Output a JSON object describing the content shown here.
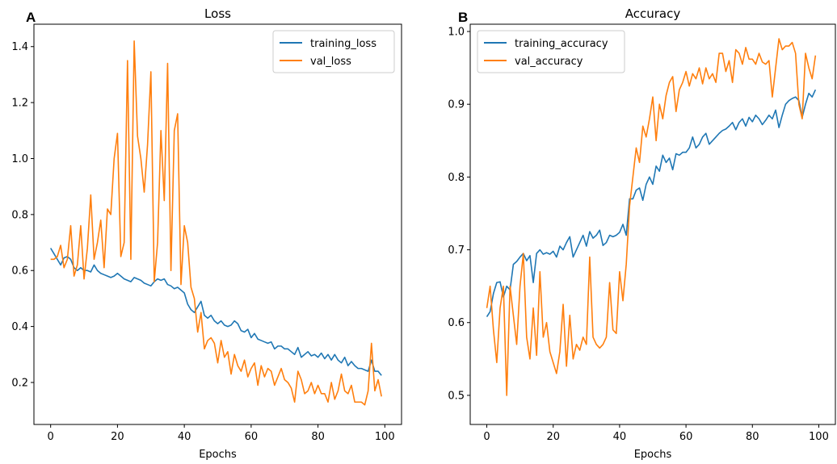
{
  "panels": {
    "a_label": "A",
    "b_label": "B"
  },
  "colors": {
    "training": "#1f77b4",
    "validation": "#ff7f0e",
    "axis": "#000000",
    "background": "#ffffff"
  },
  "chart_data": [
    {
      "type": "line",
      "title": "Loss",
      "xlabel": "Epochs",
      "ylabel": "",
      "xlim": [
        -5,
        105
      ],
      "ylim": [
        0.05,
        1.48
      ],
      "xticks": [
        0,
        20,
        40,
        60,
        80,
        100
      ],
      "yticks": [
        0.2,
        0.4,
        0.6,
        0.8,
        1.0,
        1.2,
        1.4
      ],
      "ytick_labels": [
        "0.2",
        "0.4",
        "0.6",
        "0.8",
        "1.0",
        "1.2",
        "1.4"
      ],
      "grid": false,
      "legend": "upper right",
      "x": [
        0,
        1,
        2,
        3,
        4,
        5,
        6,
        7,
        8,
        9,
        10,
        11,
        12,
        13,
        14,
        15,
        16,
        17,
        18,
        19,
        20,
        21,
        22,
        23,
        24,
        25,
        26,
        27,
        28,
        29,
        30,
        31,
        32,
        33,
        34,
        35,
        36,
        37,
        38,
        39,
        40,
        41,
        42,
        43,
        44,
        45,
        46,
        47,
        48,
        49,
        50,
        51,
        52,
        53,
        54,
        55,
        56,
        57,
        58,
        59,
        60,
        61,
        62,
        63,
        64,
        65,
        66,
        67,
        68,
        69,
        70,
        71,
        72,
        73,
        74,
        75,
        76,
        77,
        78,
        79,
        80,
        81,
        82,
        83,
        84,
        85,
        86,
        87,
        88,
        89,
        90,
        91,
        92,
        93,
        94,
        95,
        96,
        97,
        98,
        99
      ],
      "series": [
        {
          "name": "training_loss",
          "color": "#1f77b4",
          "values": [
            0.68,
            0.66,
            0.64,
            0.62,
            0.645,
            0.65,
            0.64,
            0.61,
            0.6,
            0.61,
            0.6,
            0.6,
            0.595,
            0.62,
            0.6,
            0.59,
            0.585,
            0.58,
            0.575,
            0.58,
            0.59,
            0.58,
            0.57,
            0.565,
            0.56,
            0.575,
            0.57,
            0.565,
            0.555,
            0.55,
            0.545,
            0.56,
            0.57,
            0.565,
            0.57,
            0.55,
            0.545,
            0.535,
            0.54,
            0.53,
            0.52,
            0.48,
            0.46,
            0.45,
            0.47,
            0.49,
            0.44,
            0.43,
            0.44,
            0.42,
            0.41,
            0.42,
            0.405,
            0.4,
            0.405,
            0.42,
            0.41,
            0.385,
            0.38,
            0.39,
            0.36,
            0.375,
            0.355,
            0.35,
            0.345,
            0.34,
            0.345,
            0.32,
            0.33,
            0.33,
            0.32,
            0.32,
            0.31,
            0.3,
            0.325,
            0.29,
            0.3,
            0.31,
            0.295,
            0.3,
            0.29,
            0.305,
            0.285,
            0.3,
            0.28,
            0.3,
            0.28,
            0.27,
            0.29,
            0.26,
            0.275,
            0.26,
            0.25,
            0.25,
            0.245,
            0.24,
            0.28,
            0.24,
            0.24,
            0.225
          ]
        },
        {
          "name": "val_loss",
          "color": "#ff7f0e",
          "values": [
            0.64,
            0.64,
            0.65,
            0.69,
            0.61,
            0.64,
            0.76,
            0.58,
            0.62,
            0.76,
            0.57,
            0.68,
            0.87,
            0.64,
            0.7,
            0.78,
            0.61,
            0.82,
            0.8,
            1.0,
            1.09,
            0.65,
            0.7,
            1.35,
            0.64,
            1.42,
            1.08,
            1.0,
            0.88,
            1.05,
            1.31,
            0.56,
            0.7,
            1.1,
            0.85,
            1.34,
            0.6,
            1.1,
            1.16,
            0.55,
            0.76,
            0.7,
            0.54,
            0.5,
            0.38,
            0.45,
            0.32,
            0.35,
            0.36,
            0.34,
            0.27,
            0.35,
            0.29,
            0.31,
            0.23,
            0.3,
            0.26,
            0.24,
            0.28,
            0.22,
            0.25,
            0.27,
            0.19,
            0.26,
            0.22,
            0.25,
            0.24,
            0.19,
            0.22,
            0.25,
            0.21,
            0.2,
            0.18,
            0.13,
            0.24,
            0.21,
            0.16,
            0.17,
            0.2,
            0.16,
            0.19,
            0.16,
            0.16,
            0.13,
            0.2,
            0.14,
            0.17,
            0.23,
            0.17,
            0.16,
            0.19,
            0.13,
            0.13,
            0.13,
            0.12,
            0.17,
            0.34,
            0.17,
            0.21,
            0.15
          ]
        }
      ]
    },
    {
      "type": "line",
      "title": "Accuracy",
      "xlabel": "Epochs",
      "ylabel": "",
      "xlim": [
        -5,
        105
      ],
      "ylim": [
        0.46,
        1.01
      ],
      "xticks": [
        0,
        20,
        40,
        60,
        80,
        100
      ],
      "yticks": [
        0.5,
        0.6,
        0.7,
        0.8,
        0.9,
        1.0
      ],
      "ytick_labels": [
        "0.5",
        "0.6",
        "0.7",
        "0.8",
        "0.9",
        "1.0"
      ],
      "grid": false,
      "legend": "upper left",
      "x": [
        0,
        1,
        2,
        3,
        4,
        5,
        6,
        7,
        8,
        9,
        10,
        11,
        12,
        13,
        14,
        15,
        16,
        17,
        18,
        19,
        20,
        21,
        22,
        23,
        24,
        25,
        26,
        27,
        28,
        29,
        30,
        31,
        32,
        33,
        34,
        35,
        36,
        37,
        38,
        39,
        40,
        41,
        42,
        43,
        44,
        45,
        46,
        47,
        48,
        49,
        50,
        51,
        52,
        53,
        54,
        55,
        56,
        57,
        58,
        59,
        60,
        61,
        62,
        63,
        64,
        65,
        66,
        67,
        68,
        69,
        70,
        71,
        72,
        73,
        74,
        75,
        76,
        77,
        78,
        79,
        80,
        81,
        82,
        83,
        84,
        85,
        86,
        87,
        88,
        89,
        90,
        91,
        92,
        93,
        94,
        95,
        96,
        97,
        98,
        99
      ],
      "series": [
        {
          "name": "training_accuracy",
          "color": "#1f77b4",
          "values": [
            0.608,
            0.615,
            0.64,
            0.655,
            0.656,
            0.635,
            0.65,
            0.645,
            0.68,
            0.684,
            0.69,
            0.695,
            0.685,
            0.692,
            0.655,
            0.695,
            0.7,
            0.694,
            0.696,
            0.694,
            0.698,
            0.69,
            0.705,
            0.7,
            0.71,
            0.718,
            0.69,
            0.7,
            0.71,
            0.72,
            0.705,
            0.725,
            0.716,
            0.72,
            0.727,
            0.706,
            0.71,
            0.72,
            0.718,
            0.72,
            0.724,
            0.735,
            0.72,
            0.77,
            0.77,
            0.782,
            0.785,
            0.768,
            0.79,
            0.8,
            0.79,
            0.815,
            0.808,
            0.83,
            0.82,
            0.826,
            0.81,
            0.832,
            0.83,
            0.834,
            0.834,
            0.84,
            0.855,
            0.84,
            0.845,
            0.855,
            0.86,
            0.845,
            0.85,
            0.855,
            0.86,
            0.864,
            0.866,
            0.87,
            0.875,
            0.865,
            0.875,
            0.88,
            0.87,
            0.882,
            0.876,
            0.885,
            0.88,
            0.872,
            0.878,
            0.885,
            0.88,
            0.892,
            0.868,
            0.885,
            0.9,
            0.905,
            0.908,
            0.91,
            0.905,
            0.882,
            0.9,
            0.915,
            0.91,
            0.92
          ]
        },
        {
          "name": "val_accuracy",
          "color": "#ff7f0e",
          "values": [
            0.62,
            0.65,
            0.59,
            0.545,
            0.62,
            0.65,
            0.5,
            0.65,
            0.61,
            0.57,
            0.65,
            0.695,
            0.58,
            0.55,
            0.62,
            0.555,
            0.67,
            0.58,
            0.6,
            0.56,
            0.545,
            0.53,
            0.56,
            0.625,
            0.54,
            0.61,
            0.55,
            0.57,
            0.562,
            0.58,
            0.57,
            0.69,
            0.58,
            0.57,
            0.565,
            0.57,
            0.58,
            0.655,
            0.59,
            0.585,
            0.67,
            0.63,
            0.68,
            0.76,
            0.8,
            0.84,
            0.82,
            0.87,
            0.855,
            0.88,
            0.91,
            0.85,
            0.9,
            0.88,
            0.912,
            0.93,
            0.938,
            0.89,
            0.92,
            0.93,
            0.945,
            0.925,
            0.942,
            0.935,
            0.95,
            0.928,
            0.95,
            0.935,
            0.942,
            0.93,
            0.97,
            0.97,
            0.945,
            0.96,
            0.93,
            0.975,
            0.97,
            0.955,
            0.978,
            0.962,
            0.962,
            0.955,
            0.97,
            0.958,
            0.955,
            0.96,
            0.91,
            0.95,
            0.99,
            0.975,
            0.98,
            0.98,
            0.985,
            0.97,
            0.9,
            0.88,
            0.97,
            0.95,
            0.935,
            0.967
          ]
        }
      ]
    }
  ]
}
